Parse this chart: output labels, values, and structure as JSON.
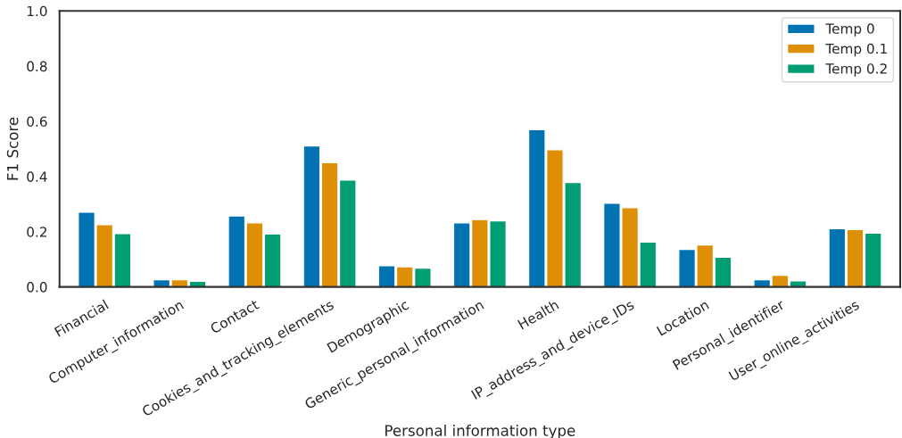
{
  "chart_data": {
    "type": "bar",
    "xlabel": "Personal information type",
    "ylabel": "F1 Score",
    "categories": [
      "Financial",
      "Computer_information",
      "Contact",
      "Cookies_and_tracking_elements",
      "Demographic",
      "Generic_personal_information",
      "Health",
      "IP_address_and_device_IDs",
      "Location",
      "Personal_identifier",
      "User_online_activities"
    ],
    "series": [
      {
        "name": "Temp 0",
        "color": "#0173b2",
        "values": [
          0.271,
          0.026,
          0.257,
          0.511,
          0.077,
          0.232,
          0.57,
          0.303,
          0.136,
          0.026,
          0.211
        ]
      },
      {
        "name": "Temp 0.1",
        "color": "#de8f05",
        "values": [
          0.226,
          0.026,
          0.232,
          0.45,
          0.073,
          0.244,
          0.497,
          0.287,
          0.152,
          0.042,
          0.208
        ]
      },
      {
        "name": "Temp 0.2",
        "color": "#029e73",
        "values": [
          0.193,
          0.02,
          0.192,
          0.387,
          0.068,
          0.239,
          0.378,
          0.163,
          0.108,
          0.022,
          0.195
        ]
      }
    ],
    "ylim": [
      0,
      1.0
    ],
    "yticks": [
      {
        "value": 0,
        "label": "0.0"
      },
      {
        "value": 0.2,
        "label": "0.2"
      },
      {
        "value": 0.4,
        "label": "0.4"
      },
      {
        "value": 0.6,
        "label": "0.6"
      },
      {
        "value": 0.8,
        "label": "0.8"
      },
      {
        "value": 1.0,
        "label": "1.0"
      }
    ],
    "grid": false,
    "legend": "top right"
  }
}
